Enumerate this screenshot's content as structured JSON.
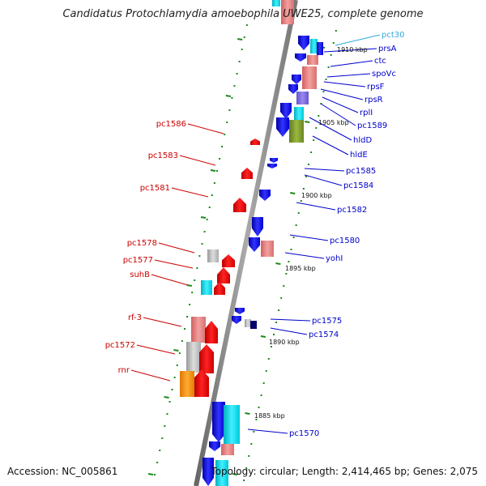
{
  "title": "Candidatus Protochlamydia amoebophila UWE25, complete genome",
  "footer": {
    "accession": "Accession: NC_005861",
    "topology": "Topology: circular; Length: 2,414,465 bp; Genes: 2,075"
  },
  "colors": {
    "backbone": "#808080",
    "tick": "#1a8a1a",
    "left_label": "#cc0000",
    "right_label": "#0000cc",
    "highlight_label": "#33aadd"
  },
  "scale_labels": [
    "1910 kbp",
    "1905 kbp",
    "1900 kbp",
    "1895 kbp",
    "1890 kbp",
    "1885 kbp"
  ],
  "genes_left": [
    {
      "name": "pc1586"
    },
    {
      "name": "pc1583"
    },
    {
      "name": "pc1581"
    },
    {
      "name": "pc1578"
    },
    {
      "name": "pc1577"
    },
    {
      "name": "suhB"
    },
    {
      "name": "rf-3"
    },
    {
      "name": "pc1572"
    },
    {
      "name": "rnr"
    }
  ],
  "genes_right": [
    {
      "name": "pct30"
    },
    {
      "name": "prsA"
    },
    {
      "name": "ctc"
    },
    {
      "name": "spoVc"
    },
    {
      "name": "rpsF"
    },
    {
      "name": "rpsR"
    },
    {
      "name": "rplI"
    },
    {
      "name": "pc1589"
    },
    {
      "name": "hldD"
    },
    {
      "name": "hldE"
    },
    {
      "name": "pc1585"
    },
    {
      "name": "pc1584"
    },
    {
      "name": "pc1582"
    },
    {
      "name": "pc1580"
    },
    {
      "name": "yohI"
    },
    {
      "name": "pc1575"
    },
    {
      "name": "pc1574"
    },
    {
      "name": "pc1570"
    }
  ]
}
